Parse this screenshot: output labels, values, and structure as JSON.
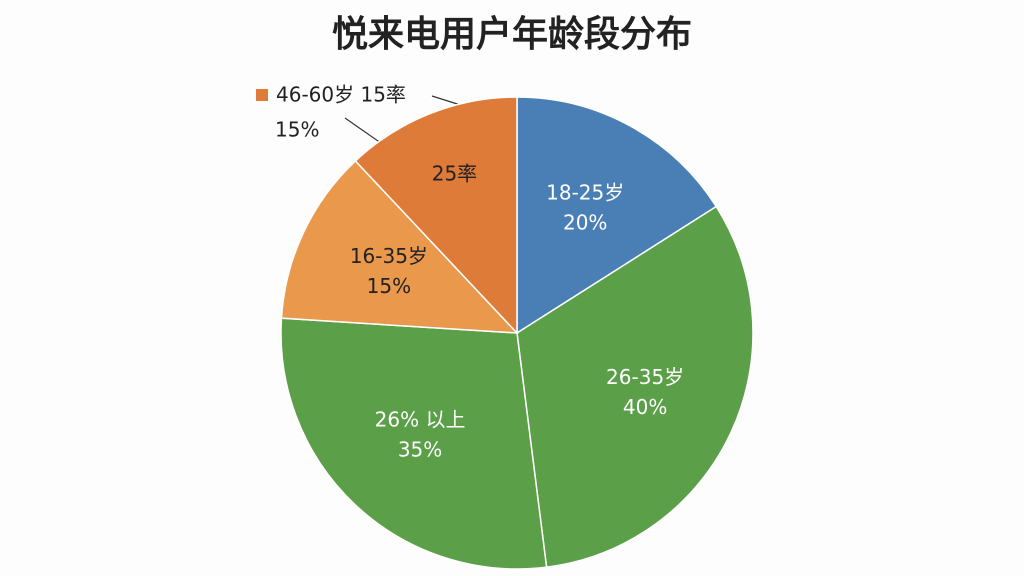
{
  "chart_data": {
    "type": "pie",
    "title": "悦来电用户年龄段分布",
    "categories": [
      "18-25岁",
      "26-35岁",
      "26% 以上",
      "16-35岁",
      "46-60岁 15率"
    ],
    "values": [
      20,
      40,
      35,
      15,
      15
    ],
    "value_labels": [
      "20%",
      "40%",
      "35%",
      "15%",
      "15%"
    ],
    "colors": [
      "#4a7fb6",
      "#5b9f49",
      "#5b9f49",
      "#e9984c",
      "#de7b39"
    ],
    "annotations": [
      "25率"
    ]
  }
}
